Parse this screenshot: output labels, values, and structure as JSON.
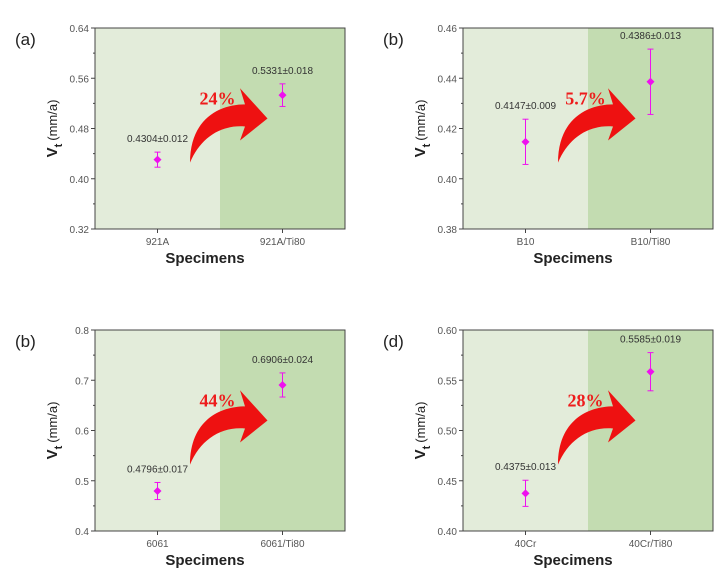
{
  "colors": {
    "left_bg": "#e3ecda",
    "right_bg": "#c3dcb1",
    "marker": "#ee11ee",
    "arrow": "#ee1111",
    "percent": "#ee1c1c"
  },
  "chart_data": [
    {
      "type": "scatter",
      "panel_label": "(a)",
      "xlabel": "Specimens",
      "ylabel_main": "V",
      "ylabel_sub": "t",
      "ylabel_unit": "(mm/a)",
      "ylim": [
        0.32,
        0.64
      ],
      "yticks": [
        "0.32",
        "0.40",
        "0.48",
        "0.56",
        "0.64"
      ],
      "categories": [
        "921A",
        "921A/Ti80"
      ],
      "values": [
        0.4304,
        0.5331
      ],
      "errors": [
        0.012,
        0.018
      ],
      "data_labels": [
        "0.4304±0.012",
        "0.5331±0.018"
      ],
      "annotation": "24%"
    },
    {
      "type": "scatter",
      "panel_label": "(b)",
      "xlabel": "Specimens",
      "ylabel_main": "V",
      "ylabel_sub": "t",
      "ylabel_unit": "(mm/a)",
      "ylim": [
        0.38,
        0.46
      ],
      "yticks": [
        "0.38",
        "0.40",
        "0.42",
        "0.44",
        "0.46"
      ],
      "categories": [
        "B10",
        "B10/Ti80"
      ],
      "values": [
        0.4147,
        0.4386
      ],
      "errors": [
        0.009,
        0.013
      ],
      "data_labels": [
        "0.4147±0.009",
        "0.4386±0.013"
      ],
      "annotation": "5.7%"
    },
    {
      "type": "scatter",
      "panel_label": "(b)",
      "xlabel": "Specimens",
      "ylabel_main": "V",
      "ylabel_sub": "t",
      "ylabel_unit": "(mm/a)",
      "ylim": [
        0.4,
        0.8
      ],
      "yticks": [
        "0.4",
        "0.5",
        "0.6",
        "0.7",
        "0.8"
      ],
      "categories": [
        "6061",
        "6061/Ti80"
      ],
      "values": [
        0.4796,
        0.6906
      ],
      "errors": [
        0.017,
        0.024
      ],
      "data_labels": [
        "0.4796±0.017",
        "0.6906±0.024"
      ],
      "annotation": "44%"
    },
    {
      "type": "scatter",
      "panel_label": "(d)",
      "xlabel": "Specimens",
      "ylabel_main": "V",
      "ylabel_sub": "t",
      "ylabel_unit": "(mm/a)",
      "ylim": [
        0.4,
        0.6
      ],
      "yticks": [
        "0.40",
        "0.45",
        "0.50",
        "0.55",
        "0.60"
      ],
      "categories": [
        "40Cr",
        "40Cr/Ti80"
      ],
      "values": [
        0.4375,
        0.5585
      ],
      "errors": [
        0.013,
        0.019
      ],
      "data_labels": [
        "0.4375±0.013",
        "0.5585±0.019"
      ],
      "annotation": "28%"
    }
  ]
}
